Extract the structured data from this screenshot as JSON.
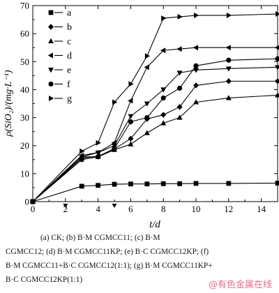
{
  "chart_data": {
    "type": "line",
    "xlabel": "t/d",
    "ylabel": "ρ(SiO₂)/(mg·L⁻¹)",
    "xlim": [
      0,
      15
    ],
    "ylim": [
      0,
      70
    ],
    "xticks": [
      0,
      2,
      4,
      6,
      8,
      10,
      12,
      14
    ],
    "yticks": [
      0,
      10,
      20,
      30,
      40,
      50,
      60,
      70
    ],
    "grid": false,
    "legend": "top-left",
    "series": [
      {
        "name": "a",
        "marker": "square",
        "x": [
          0,
          3,
          4,
          5,
          6,
          7,
          8,
          9,
          10,
          12,
          15
        ],
        "y": [
          0,
          5.5,
          5.8,
          6.2,
          6.3,
          6.3,
          6.4,
          6.4,
          6.5,
          6.5,
          6.6
        ]
      },
      {
        "name": "b",
        "marker": "diamond",
        "x": [
          0,
          3,
          4,
          5,
          6,
          7,
          8,
          9,
          10,
          12,
          15
        ],
        "y": [
          0,
          15.5,
          16.2,
          18.8,
          22.5,
          29.5,
          31.0,
          33.8,
          41.5,
          43.0,
          43.0
        ]
      },
      {
        "name": "c",
        "marker": "triangle-up",
        "x": [
          0,
          3,
          4,
          5,
          6,
          7,
          8,
          9,
          10,
          12,
          15
        ],
        "y": [
          0,
          16.0,
          16.0,
          18.5,
          20.5,
          24.5,
          28.0,
          30.0,
          35.5,
          37.0,
          38.0
        ]
      },
      {
        "name": "d",
        "marker": "triangle-left",
        "x": [
          0,
          3,
          4,
          5,
          6,
          7,
          8,
          9,
          10,
          12,
          15
        ],
        "y": [
          0,
          16.5,
          17.5,
          21.0,
          36.0,
          48.0,
          54.0,
          54.5,
          55.0,
          55.0,
          55.0
        ]
      },
      {
        "name": "e",
        "marker": "triangle-down",
        "x": [
          0,
          3,
          4,
          5,
          6,
          7,
          8,
          9,
          10,
          12,
          15
        ],
        "y": [
          0,
          16.0,
          17.5,
          20.0,
          30.5,
          35.0,
          40.0,
          46.0,
          47.0,
          47.5,
          48.0
        ]
      },
      {
        "name": "f",
        "marker": "circle",
        "x": [
          0,
          3,
          4,
          5,
          6,
          7,
          8,
          9,
          10,
          12,
          15
        ],
        "y": [
          0,
          15.0,
          16.0,
          19.0,
          28.5,
          30.0,
          37.0,
          40.5,
          48.5,
          50.5,
          51.0
        ]
      },
      {
        "name": "g",
        "marker": "triangle-right",
        "x": [
          0,
          3,
          4,
          5,
          6,
          7,
          8,
          9,
          10,
          12,
          15
        ],
        "y": [
          0,
          18.0,
          21.0,
          35.5,
          42.0,
          52.0,
          65.5,
          66.0,
          66.5,
          66.5,
          67.0
        ]
      }
    ],
    "arrows_x": [
      2,
      5
    ]
  },
  "caption": {
    "line1": "(a)  CK;  (b)  B·M  CGMCC11;  (c)  B·M",
    "line2": "CGMCC12; (d) B·M CGMCC11KP; (e) B·C CGMCC12KP; (f)",
    "line3": "B·M CGMCC11+B·C CGMCC12(1:1); (g) B·M CGMCC11KP+",
    "line4": "B·C CGMCC12KP(1:1)"
  },
  "watermark": "@有色金属在线"
}
